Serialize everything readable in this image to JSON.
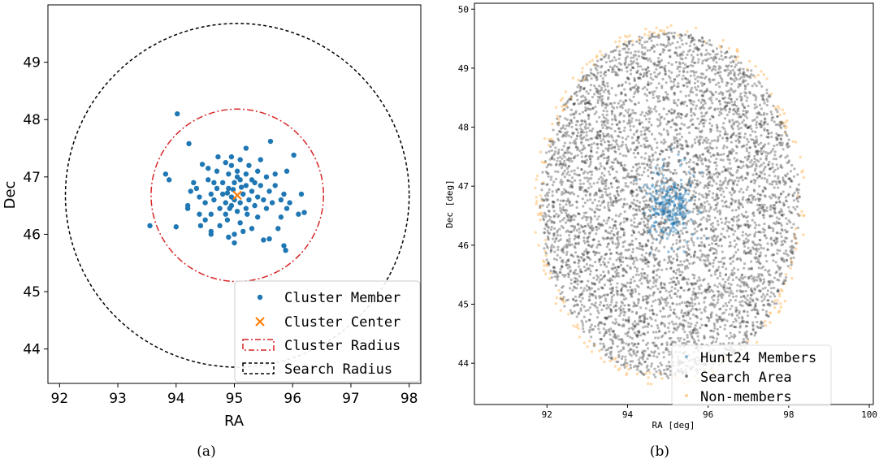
{
  "chart_data": [
    {
      "panel": "(a)",
      "type": "scatter",
      "xlabel": "RA",
      "ylabel": "Dec",
      "xlim": [
        91.8,
        98.2
      ],
      "ylim": [
        43.4,
        50.0
      ],
      "xticks": [
        92,
        93,
        94,
        95,
        96,
        97,
        98
      ],
      "yticks": [
        44,
        45,
        46,
        47,
        48,
        49
      ],
      "legend_position": "bottom-right",
      "legend": [
        "Cluster Member",
        "Cluster Center",
        "Cluster Radius",
        "Search Radius"
      ],
      "colors": {
        "member": "#1f77b4",
        "center": "#ff7f0e",
        "cluster_radius": "#d62728",
        "search_radius": "#000000"
      },
      "center": {
        "ra": 95.05,
        "dec": 46.68
      },
      "cluster_radius_deg": 1.48,
      "search_radius_deg": 2.95,
      "members": [
        [
          94.02,
          48.1
        ],
        [
          94.22,
          47.58
        ],
        [
          95.62,
          47.62
        ],
        [
          96.02,
          47.38
        ],
        [
          93.82,
          47.05
        ],
        [
          93.88,
          46.95
        ],
        [
          93.55,
          46.15
        ],
        [
          94.0,
          46.13
        ],
        [
          94.2,
          46.5
        ],
        [
          94.42,
          46.15
        ],
        [
          94.6,
          46.0
        ],
        [
          94.45,
          47.22
        ],
        [
          94.35,
          46.8
        ],
        [
          94.55,
          46.95
        ],
        [
          94.7,
          47.1
        ],
        [
          94.85,
          47.25
        ],
        [
          94.95,
          47.35
        ],
        [
          95.1,
          47.3
        ],
        [
          95.25,
          47.2
        ],
        [
          95.4,
          47.1
        ],
        [
          95.55,
          47.0
        ],
        [
          95.7,
          46.85
        ],
        [
          95.85,
          46.7
        ],
        [
          95.95,
          46.55
        ],
        [
          96.1,
          46.35
        ],
        [
          96.2,
          46.38
        ],
        [
          96.15,
          46.7
        ],
        [
          95.9,
          47.1
        ],
        [
          95.8,
          46.3
        ],
        [
          95.75,
          46.1
        ],
        [
          95.6,
          45.92
        ],
        [
          95.5,
          45.9
        ],
        [
          95.85,
          45.8
        ],
        [
          95.88,
          45.72
        ],
        [
          95.0,
          45.85
        ],
        [
          94.9,
          45.95
        ],
        [
          94.75,
          46.15
        ],
        [
          94.6,
          46.35
        ],
        [
          94.5,
          46.55
        ],
        [
          94.4,
          46.65
        ],
        [
          94.3,
          46.9
        ],
        [
          94.2,
          46.45
        ],
        [
          94.65,
          46.6
        ],
        [
          94.8,
          46.7
        ],
        [
          94.9,
          46.8
        ],
        [
          95.0,
          46.9
        ],
        [
          95.1,
          46.95
        ],
        [
          95.2,
          46.85
        ],
        [
          95.3,
          46.75
        ],
        [
          95.4,
          46.65
        ],
        [
          95.5,
          46.6
        ],
        [
          95.35,
          46.5
        ],
        [
          95.2,
          46.45
        ],
        [
          95.05,
          46.4
        ],
        [
          94.95,
          46.5
        ],
        [
          94.85,
          46.55
        ],
        [
          94.75,
          46.45
        ],
        [
          94.7,
          46.8
        ],
        [
          94.8,
          46.9
        ],
        [
          94.9,
          47.05
        ],
        [
          95.05,
          47.1
        ],
        [
          95.2,
          47.05
        ],
        [
          95.3,
          46.95
        ],
        [
          95.45,
          46.85
        ],
        [
          95.6,
          46.75
        ],
        [
          95.0,
          46.6
        ],
        [
          95.1,
          46.55
        ],
        [
          94.95,
          46.65
        ],
        [
          95.15,
          46.7
        ],
        [
          95.25,
          46.6
        ],
        [
          94.88,
          46.72
        ],
        [
          94.98,
          46.78
        ],
        [
          95.12,
          46.82
        ],
        [
          94.92,
          46.45
        ],
        [
          95.22,
          46.35
        ],
        [
          95.4,
          46.3
        ],
        [
          95.1,
          46.2
        ],
        [
          94.88,
          46.25
        ],
        [
          94.6,
          46.7
        ],
        [
          95.55,
          46.45
        ],
        [
          95.65,
          46.55
        ],
        [
          95.7,
          47.05
        ],
        [
          95.45,
          47.3
        ],
        [
          95.2,
          47.5
        ],
        [
          94.95,
          47.2
        ],
        [
          94.72,
          47.35
        ],
        [
          94.55,
          47.15
        ],
        [
          94.4,
          46.35
        ],
        [
          94.6,
          46.05
        ],
        [
          95.3,
          46.1
        ],
        [
          95.0,
          46.0
        ],
        [
          95.15,
          46.05
        ],
        [
          94.85,
          46.35
        ],
        [
          95.35,
          46.9
        ],
        [
          95.05,
          47.0
        ],
        [
          94.65,
          46.9
        ],
        [
          95.8,
          46.6
        ],
        [
          95.9,
          46.45
        ],
        [
          94.25,
          46.75
        ],
        [
          94.5,
          46.25
        ]
      ]
    },
    {
      "panel": "(b)",
      "type": "scatter",
      "xlabel": "RA [deg]",
      "ylabel": "Dec [deg]",
      "xlim": [
        90.2,
        100.1
      ],
      "ylim": [
        43.3,
        50.1
      ],
      "xticks": [
        92,
        94,
        96,
        98,
        100
      ],
      "yticks": [
        44,
        45,
        46,
        47,
        48,
        49,
        50
      ],
      "legend_position": "bottom-right",
      "legend": [
        "Hunt24 Members",
        "Search Area",
        "Non-members"
      ],
      "colors": {
        "members": "#1f77b4",
        "search_area": "#2e2e2e",
        "non_members": "#ffbb66"
      },
      "center": {
        "ra": 95.05,
        "dec": 46.68
      },
      "search_radius_deg": 2.95,
      "members_radius_deg": 0.6
    }
  ],
  "captions": {
    "a": "(a)",
    "b": "(b)"
  }
}
